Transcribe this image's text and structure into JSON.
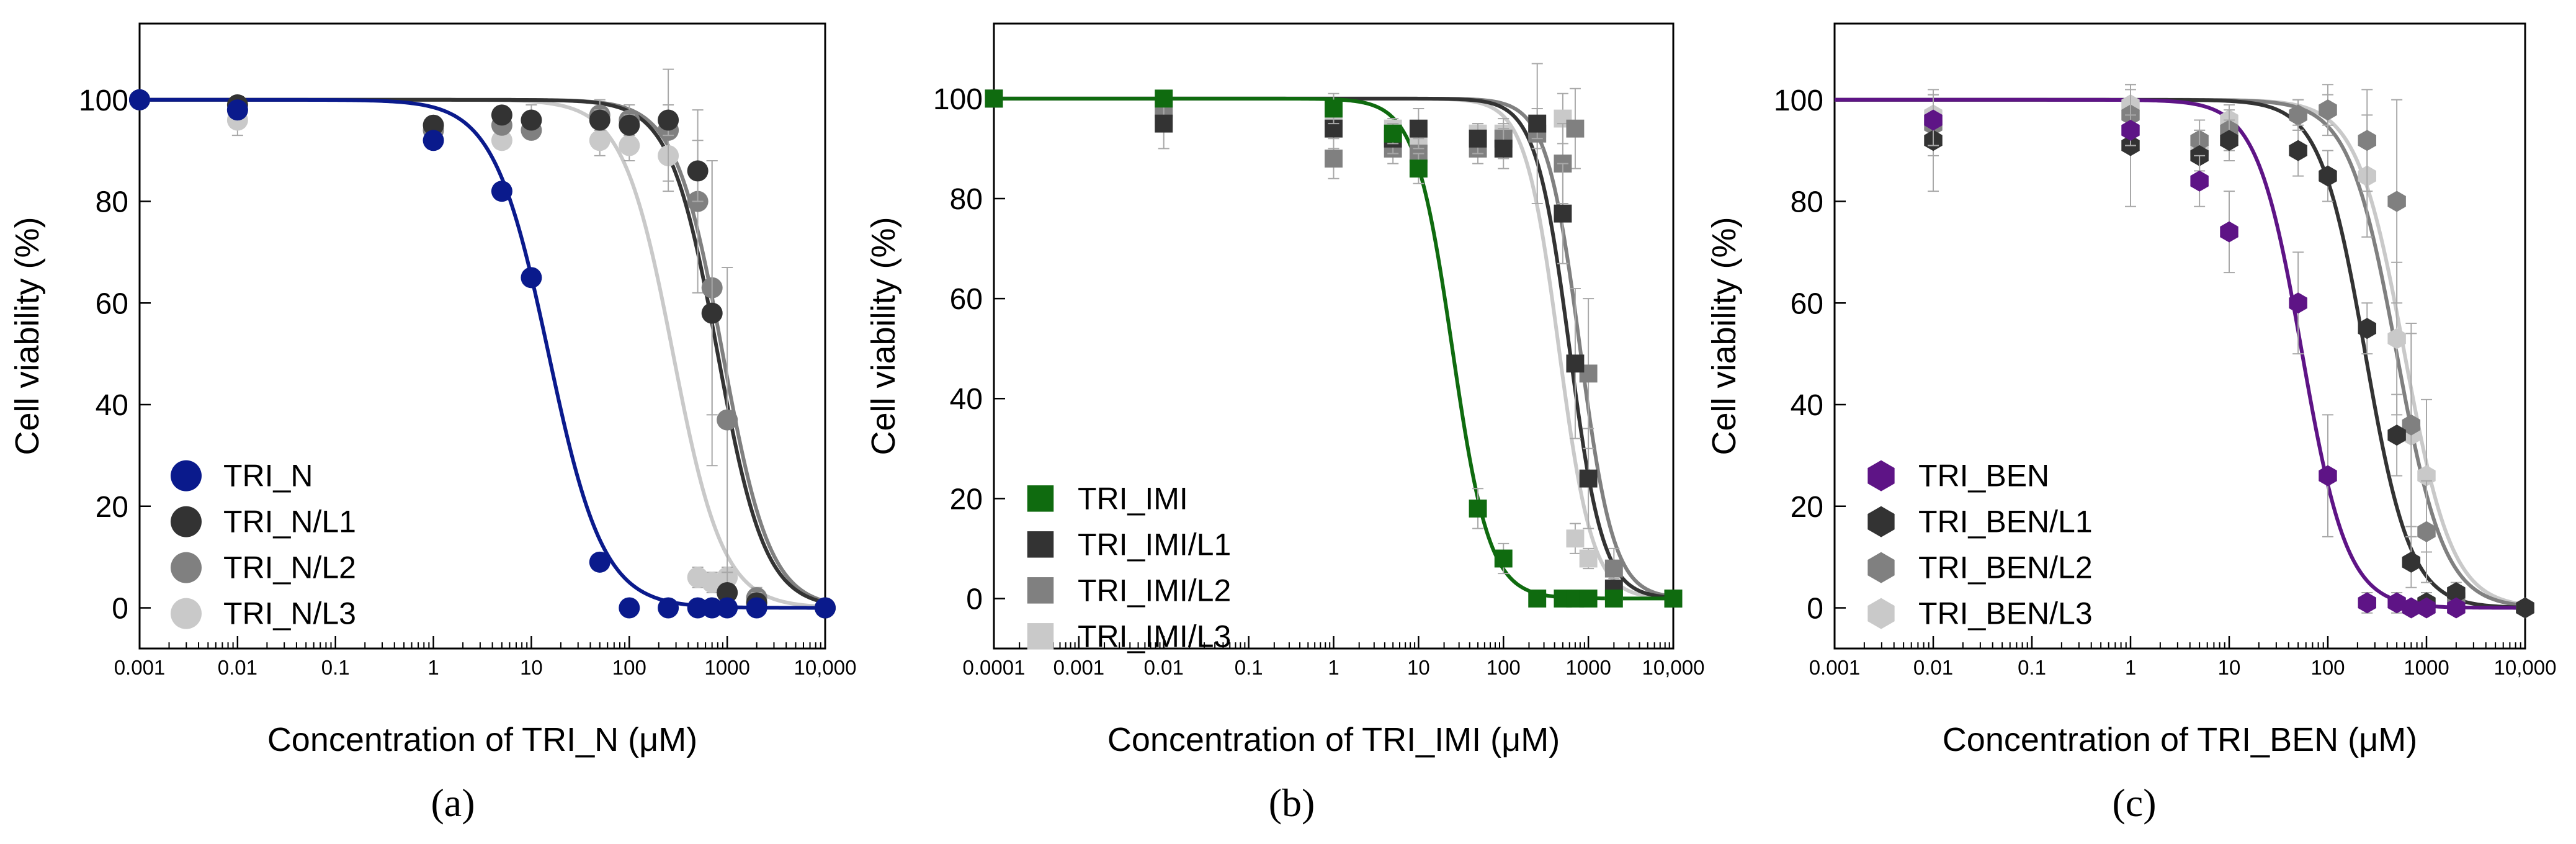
{
  "figure": {
    "colors": {
      "axis": "#000000",
      "errorbar": "#a8a8a8",
      "TRI_N": "#0a1a8c",
      "TRI_IMI": "#0f6b0f",
      "TRI_BEN": "#5e1486",
      "L1": "#333333",
      "L2": "#808080",
      "L3": "#c9c9c9"
    }
  },
  "chart_data": [
    {
      "type": "scatter",
      "panel_label": "(a)",
      "xlabel": "Concentration of TRI_N (μM)",
      "ylabel": "Cell viability (%)",
      "xscale": "log",
      "xlim": [
        0.001,
        10000
      ],
      "ylim": [
        -8,
        115
      ],
      "x_tick_values": [
        0.001,
        0.01,
        0.1,
        1,
        10,
        100,
        1000,
        10000
      ],
      "x_tick_labels": [
        "0.001",
        "0.01",
        "0.1",
        "1",
        "10",
        "100",
        "1000",
        "10,000"
      ],
      "y_tick_values": [
        0,
        20,
        40,
        60,
        80,
        100
      ],
      "y_tick_labels": [
        "0",
        "20",
        "40",
        "60",
        "80",
        "100"
      ],
      "marker": "circle",
      "legend_location": "bottom-left",
      "series": [
        {
          "name": "TRI_N",
          "color": "#0a1a8c",
          "ic50": 15,
          "hill": 1.55,
          "points": [
            [
              0.001,
              100
            ],
            [
              0.01,
              98
            ],
            [
              1,
              92
            ],
            [
              5,
              82
            ],
            [
              10,
              65
            ],
            [
              50,
              9
            ],
            [
              100,
              0
            ],
            [
              250,
              0
            ],
            [
              500,
              0
            ],
            [
              700,
              0
            ],
            [
              1000,
              0
            ],
            [
              2000,
              0
            ],
            [
              10000,
              0
            ]
          ],
          "errors": [
            0,
            0,
            0,
            0,
            0,
            0,
            0,
            0,
            0,
            0,
            0,
            0,
            0
          ]
        },
        {
          "name": "TRI_N/L1",
          "color": "#333333",
          "ic50": 800,
          "hill": 1.8,
          "points": [
            [
              0.001,
              100
            ],
            [
              0.01,
              99
            ],
            [
              1,
              95
            ],
            [
              5,
              97
            ],
            [
              10,
              96
            ],
            [
              50,
              96
            ],
            [
              100,
              95
            ],
            [
              250,
              96
            ],
            [
              500,
              86
            ],
            [
              700,
              58
            ],
            [
              1000,
              3
            ],
            [
              2000,
              1
            ],
            [
              10000,
              0
            ]
          ],
          "errors": [
            0,
            0,
            0,
            0,
            0,
            2,
            2,
            3,
            6,
            30,
            4,
            2,
            0
          ]
        },
        {
          "name": "TRI_N/L2",
          "color": "#808080",
          "ic50": 900,
          "hill": 1.8,
          "points": [
            [
              0.001,
              100
            ],
            [
              0.01,
              98
            ],
            [
              1,
              94
            ],
            [
              5,
              95
            ],
            [
              10,
              94
            ],
            [
              50,
              97
            ],
            [
              100,
              96
            ],
            [
              250,
              94
            ],
            [
              500,
              80
            ],
            [
              700,
              63
            ],
            [
              1000,
              37
            ],
            [
              2000,
              2
            ],
            [
              10000,
              0
            ]
          ],
          "errors": [
            0,
            0,
            0,
            0,
            0,
            3,
            3,
            12,
            18,
            25,
            30,
            2,
            0
          ]
        },
        {
          "name": "TRI_N/L3",
          "color": "#c9c9c9",
          "ic50": 280,
          "hill": 1.7,
          "points": [
            [
              0.001,
              100
            ],
            [
              0.01,
              96
            ],
            [
              1,
              94
            ],
            [
              5,
              92
            ],
            [
              10,
              96
            ],
            [
              50,
              92
            ],
            [
              100,
              91
            ],
            [
              250,
              89
            ],
            [
              500,
              6
            ],
            [
              700,
              5
            ],
            [
              1000,
              6
            ],
            [
              2000,
              1
            ],
            [
              10000,
              0
            ]
          ],
          "errors": [
            0,
            3,
            2,
            0,
            3,
            3,
            3,
            5,
            2,
            2,
            2,
            1,
            0
          ]
        }
      ]
    },
    {
      "type": "scatter",
      "panel_label": "(b)",
      "xlabel": "Concentration of TRI_IMI (μM)",
      "ylabel": "Cell viability (%)",
      "xscale": "log",
      "xlim": [
        0.0001,
        10000
      ],
      "ylim": [
        -10,
        115
      ],
      "x_tick_values": [
        0.0001,
        0.001,
        0.01,
        0.1,
        1,
        10,
        100,
        1000,
        10000
      ],
      "x_tick_labels": [
        "0.0001",
        "0.001",
        "0.01",
        "0.1",
        "1",
        "10",
        "100",
        "1000",
        "10,000"
      ],
      "y_tick_values": [
        0,
        20,
        40,
        60,
        80,
        100
      ],
      "y_tick_labels": [
        "0",
        "20",
        "40",
        "60",
        "80",
        "100"
      ],
      "marker": "square",
      "legend_location": "bottom-left",
      "series": [
        {
          "name": "TRI_IMI",
          "color": "#0f6b0f",
          "ic50": 25,
          "hill": 2.0,
          "points": [
            [
              0.0001,
              100
            ],
            [
              0.01,
              100
            ],
            [
              1,
              98
            ],
            [
              5,
              93
            ],
            [
              10,
              86
            ],
            [
              50,
              18
            ],
            [
              100,
              8
            ],
            [
              250,
              0
            ],
            [
              500,
              0
            ],
            [
              700,
              0
            ],
            [
              1000,
              0
            ],
            [
              2000,
              0
            ],
            [
              10000,
              0
            ]
          ],
          "errors": [
            0,
            0,
            3,
            2,
            3,
            4,
            3,
            0,
            0,
            0,
            0,
            0,
            0
          ]
        },
        {
          "name": "TRI_IMI/L1",
          "color": "#333333",
          "ic50": 600,
          "hill": 2.2,
          "points": [
            [
              0.0001,
              100
            ],
            [
              0.01,
              95
            ],
            [
              1,
              94
            ],
            [
              5,
              92
            ],
            [
              10,
              94
            ],
            [
              50,
              92
            ],
            [
              100,
              90
            ],
            [
              250,
              95
            ],
            [
              500,
              77
            ],
            [
              700,
              47
            ],
            [
              1000,
              24
            ],
            [
              2000,
              2
            ],
            [
              10000,
              0
            ]
          ],
          "errors": [
            0,
            5,
            4,
            3,
            4,
            3,
            4,
            3,
            10,
            15,
            10,
            2,
            0
          ]
        },
        {
          "name": "TRI_IMI/L2",
          "color": "#808080",
          "ic50": 800,
          "hill": 2.2,
          "points": [
            [
              0.0001,
              100
            ],
            [
              0.01,
              98
            ],
            [
              1,
              88
            ],
            [
              5,
              90
            ],
            [
              10,
              89
            ],
            [
              50,
              90
            ],
            [
              100,
              92
            ],
            [
              250,
              93
            ],
            [
              500,
              87
            ],
            [
              700,
              94
            ],
            [
              1000,
              45
            ],
            [
              2000,
              6
            ],
            [
              10000,
              0
            ]
          ],
          "errors": [
            0,
            2,
            4,
            3,
            3,
            3,
            4,
            14,
            8,
            8,
            15,
            4,
            0
          ]
        },
        {
          "name": "TRI_IMI/L3",
          "color": "#c9c9c9",
          "ic50": 450,
          "hill": 2.2,
          "points": [
            [
              0.0001,
              100
            ],
            [
              0.01,
              96
            ],
            [
              1,
              96
            ],
            [
              5,
              94
            ],
            [
              10,
              92
            ],
            [
              50,
              93
            ],
            [
              100,
              93
            ],
            [
              250,
              94
            ],
            [
              500,
              96
            ],
            [
              700,
              12
            ],
            [
              1000,
              8
            ],
            [
              2000,
              1
            ],
            [
              10000,
              0
            ]
          ],
          "errors": [
            0,
            2,
            2,
            2,
            2,
            2,
            2,
            4,
            5,
            3,
            2,
            1,
            0
          ]
        }
      ]
    },
    {
      "type": "scatter",
      "panel_label": "(c)",
      "xlabel": "Concentration of TRI_BEN (μM)",
      "ylabel": "Cell viability (%)",
      "xscale": "log",
      "xlim": [
        0.001,
        10000
      ],
      "ylim": [
        -8,
        115
      ],
      "x_tick_values": [
        0.001,
        0.01,
        0.1,
        1,
        10,
        100,
        1000,
        10000
      ],
      "x_tick_labels": [
        "0.001",
        "0.01",
        "0.1",
        "1",
        "10",
        "100",
        "1000",
        "10,000"
      ],
      "y_tick_values": [
        0,
        20,
        40,
        60,
        80,
        100
      ],
      "y_tick_labels": [
        "0",
        "20",
        "40",
        "60",
        "80",
        "100"
      ],
      "marker": "hexagon",
      "legend_location": "bottom-left",
      "series": [
        {
          "name": "TRI_BEN",
          "color": "#5e1486",
          "ic50": 55,
          "hill": 1.9,
          "points": [
            [
              0.01,
              96
            ],
            [
              1,
              94
            ],
            [
              5,
              84
            ],
            [
              10,
              74
            ],
            [
              50,
              60
            ],
            [
              100,
              26
            ],
            [
              250,
              1
            ],
            [
              500,
              1
            ],
            [
              700,
              0
            ],
            [
              1000,
              0
            ],
            [
              2000,
              0
            ]
          ],
          "errors": [
            5,
            3,
            5,
            8,
            10,
            12,
            2,
            2,
            1,
            1,
            1
          ]
        },
        {
          "name": "TRI_BEN/L1",
          "color": "#333333",
          "ic50": 240,
          "hill": 1.9,
          "points": [
            [
              0.01,
              92
            ],
            [
              1,
              91
            ],
            [
              5,
              89
            ],
            [
              10,
              92
            ],
            [
              50,
              90
            ],
            [
              100,
              85
            ],
            [
              250,
              55
            ],
            [
              500,
              34
            ],
            [
              700,
              9
            ],
            [
              1000,
              1
            ],
            [
              2000,
              3
            ],
            [
              10000,
              0
            ]
          ],
          "errors": [
            10,
            12,
            5,
            4,
            5,
            5,
            5,
            8,
            5,
            2,
            1,
            0
          ]
        },
        {
          "name": "TRI_BEN/L2",
          "color": "#808080",
          "ic50": 500,
          "hill": 1.8,
          "points": [
            [
              0.01,
              95
            ],
            [
              1,
              97
            ],
            [
              5,
              92
            ],
            [
              10,
              94
            ],
            [
              50,
              97
            ],
            [
              100,
              98
            ],
            [
              250,
              92
            ],
            [
              500,
              80
            ],
            [
              700,
              36
            ],
            [
              1000,
              15
            ],
            [
              2000,
              2
            ],
            [
              10000,
              0
            ]
          ],
          "errors": [
            6,
            5,
            4,
            4,
            3,
            5,
            10,
            20,
            20,
            10,
            2,
            0
          ]
        },
        {
          "name": "TRI_BEN/L3",
          "color": "#c9c9c9",
          "ic50": 600,
          "hill": 1.8,
          "points": [
            [
              0.01,
              97
            ],
            [
              1,
              99
            ],
            [
              5,
              90
            ],
            [
              10,
              96
            ],
            [
              50,
              97
            ],
            [
              100,
              98
            ],
            [
              250,
              85
            ],
            [
              500,
              53
            ],
            [
              700,
              34
            ],
            [
              1000,
              26
            ],
            [
              2000,
              2
            ],
            [
              10000,
              0
            ]
          ],
          "errors": [
            4,
            4,
            4,
            3,
            3,
            3,
            12,
            15,
            20,
            15,
            3,
            0
          ]
        }
      ]
    }
  ]
}
